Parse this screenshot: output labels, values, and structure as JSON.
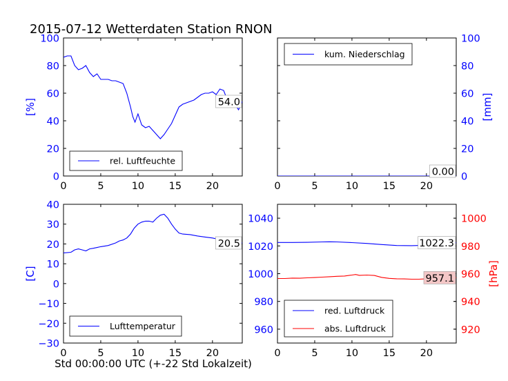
{
  "title": "2015-07-12 Wetterdaten Station RNON",
  "xlabel": "Std 00:00:00 UTC (+-22 Std Lokalzeit)",
  "colors": {
    "blue": "#0000ff",
    "red": "#ff0000",
    "black": "#000000",
    "badge_red": "#f4c7c7"
  },
  "chart_data": [
    {
      "id": "humidity",
      "type": "line",
      "title": "",
      "xlabel": "",
      "ylabel": "[%]",
      "xlim": [
        0,
        24
      ],
      "ylim": [
        0,
        100
      ],
      "xticks": [
        0,
        5,
        10,
        15,
        20
      ],
      "yticks": [
        0,
        20,
        40,
        60,
        80,
        100
      ],
      "legend": "lower-left",
      "series": [
        {
          "name": "rel. Luftfeuchte",
          "color": "#0000ff",
          "x": [
            0,
            0.5,
            1,
            1.5,
            2,
            2.5,
            3,
            3.5,
            4,
            4.5,
            5,
            5.5,
            6,
            6.5,
            7,
            7.5,
            8,
            8.5,
            9,
            9.3,
            9.6,
            10,
            10.5,
            11,
            11.5,
            12,
            12.5,
            13,
            13.5,
            14,
            14.5,
            15,
            15.5,
            16,
            16.5,
            17,
            17.5,
            18,
            18.5,
            19,
            19.5,
            20,
            20.5,
            21,
            21.5,
            22,
            22.5,
            23,
            23.5,
            24
          ],
          "y": [
            86,
            87,
            87,
            80,
            77,
            78,
            80,
            75,
            72,
            74,
            70,
            70,
            70,
            69,
            69,
            68,
            67,
            60,
            50,
            43,
            39,
            45,
            37,
            35,
            36,
            33,
            30,
            27,
            30,
            34,
            38,
            44,
            50,
            52,
            53,
            54,
            55,
            57,
            59,
            60,
            60,
            61,
            59,
            63,
            62,
            55,
            53,
            52,
            48,
            54
          ]
        }
      ],
      "annotation": {
        "text": "54.0",
        "x": 24,
        "y": 54.0
      }
    },
    {
      "id": "precipitation",
      "type": "line",
      "title": "",
      "xlabel": "",
      "ylabel": "[mm]",
      "ylabel_side": "right",
      "xlim": [
        0,
        24
      ],
      "ylim": [
        0,
        100
      ],
      "xticks": [
        0,
        5,
        10,
        15,
        20
      ],
      "yticks": [
        0,
        20,
        40,
        60,
        80,
        100
      ],
      "legend": "top-left",
      "series": [
        {
          "name": "kum. Niederschlag",
          "color": "#0000ff",
          "x": [
            0,
            24
          ],
          "y": [
            0,
            0
          ]
        }
      ],
      "annotation": {
        "text": "0.00",
        "x": 24,
        "y": 0
      }
    },
    {
      "id": "temperature",
      "type": "line",
      "title": "",
      "xlabel": "Std 00:00:00 UTC (+-22 Std Lokalzeit)",
      "ylabel": "[C]",
      "xlim": [
        0,
        24
      ],
      "ylim": [
        -30,
        40
      ],
      "xticks": [
        0,
        5,
        10,
        15,
        20
      ],
      "yticks": [
        -30,
        -20,
        -10,
        0,
        10,
        20,
        30,
        40
      ],
      "legend": "lower-left",
      "series": [
        {
          "name": "Lufttemperatur",
          "color": "#0000ff",
          "x": [
            0,
            1,
            1.5,
            2,
            2.5,
            3,
            3.5,
            4,
            4.5,
            5,
            6,
            7,
            7.5,
            8,
            8.5,
            9,
            9.5,
            10,
            10.5,
            11,
            11.5,
            12,
            12.5,
            13,
            13.5,
            14,
            14.5,
            15,
            15.5,
            16,
            17,
            18,
            19,
            20,
            21,
            22,
            23,
            24
          ],
          "y": [
            15.5,
            15.8,
            17,
            17.5,
            17,
            16.5,
            17.5,
            17.8,
            18.2,
            18.6,
            19.2,
            20.5,
            21.5,
            22,
            23,
            25,
            28,
            30,
            31,
            31.5,
            31.5,
            31,
            33,
            34.5,
            35,
            33,
            30,
            27.5,
            25.5,
            25,
            24.7,
            24,
            23.5,
            23,
            22.2,
            21.5,
            21,
            20.5
          ]
        }
      ],
      "annotation": {
        "text": "20.5",
        "x": 24,
        "y": 20.5
      }
    },
    {
      "id": "pressure",
      "type": "line",
      "title": "",
      "xlabel": "",
      "ylabel": "",
      "ylim": [
        950,
        1050
      ],
      "yticks": [
        960,
        980,
        1000,
        1020,
        1040
      ],
      "ylabel_right": "[hPa]",
      "ylim_right": [
        910,
        1010
      ],
      "yticks_right": [
        920,
        940,
        960,
        980,
        1000
      ],
      "xlim": [
        0,
        24
      ],
      "xticks": [
        0,
        5,
        10,
        15,
        20
      ],
      "legend": "lower-left",
      "series": [
        {
          "name": "red. Luftdruck",
          "color": "#0000ff",
          "axis": "left",
          "x": [
            0,
            2,
            4,
            6,
            7,
            8,
            10,
            12,
            14,
            16,
            18,
            20,
            22,
            24
          ],
          "y": [
            1022.5,
            1022.5,
            1022.6,
            1022.9,
            1023,
            1022.9,
            1022.4,
            1021.8,
            1021,
            1020.3,
            1020.2,
            1020.5,
            1021.5,
            1022.3
          ]
        },
        {
          "name": "abs. Luftdruck",
          "color": "#ff0000",
          "axis": "right",
          "x": [
            0,
            1,
            2,
            3,
            4,
            5,
            6,
            7,
            8,
            9,
            10,
            10.5,
            11,
            12,
            13,
            14,
            15,
            16,
            17,
            18,
            19,
            20,
            21,
            22,
            23,
            24
          ],
          "y": [
            956.5,
            956.5,
            956.8,
            956.7,
            957,
            957.2,
            957.5,
            957.8,
            958.1,
            958.3,
            959,
            959.4,
            958.8,
            959,
            958.7,
            957.3,
            956.6,
            956.3,
            956.2,
            956,
            956,
            956.3,
            956.8,
            956.9,
            957,
            957.1
          ]
        }
      ],
      "annotations": [
        {
          "text": "1022.3",
          "x": 24,
          "y": 1022.3,
          "axis": "left"
        },
        {
          "text": "957.1",
          "x": 24,
          "y": 957.1,
          "axis": "right"
        }
      ]
    }
  ]
}
